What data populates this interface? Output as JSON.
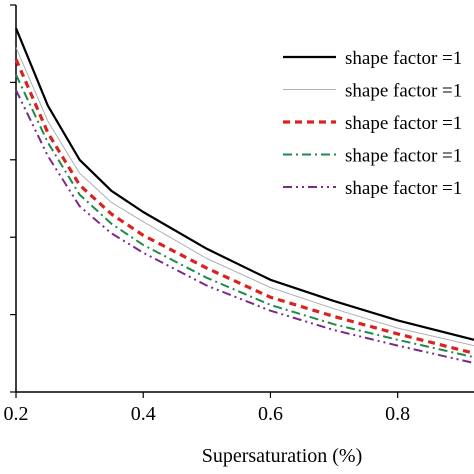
{
  "chart_data": {
    "type": "line",
    "title": "",
    "xlabel": "Supersaturation (%)",
    "ylabel": "",
    "xlim": [
      0.2,
      0.92
    ],
    "ylim": [
      0,
      1
    ],
    "xticks": [
      0.2,
      0.4,
      0.6,
      0.8
    ],
    "xtick_labels": [
      "0.2",
      "0.4",
      "0.6",
      "0.8"
    ],
    "yticks": [
      0,
      0.2,
      0.4,
      0.6,
      0.8,
      1.0
    ],
    "grid": false,
    "legend_position": "top-right",
    "x": [
      0.2,
      0.25,
      0.3,
      0.35,
      0.4,
      0.5,
      0.6,
      0.7,
      0.8,
      0.92
    ],
    "series": [
      {
        "name": "shape factor =1",
        "color": "#000000",
        "dash": "solid",
        "values": [
          0.94,
          0.74,
          0.6,
          0.52,
          0.465,
          0.37,
          0.29,
          0.235,
          0.185,
          0.135
        ]
      },
      {
        "name": "shape factor =1",
        "color": "#b0b0b0",
        "dash": "solid",
        "values": [
          0.89,
          0.7,
          0.565,
          0.49,
          0.44,
          0.345,
          0.27,
          0.215,
          0.165,
          0.12
        ]
      },
      {
        "name": "shape factor =1",
        "color": "#d9231f",
        "dash": "dashed",
        "values": [
          0.86,
          0.67,
          0.535,
          0.46,
          0.405,
          0.32,
          0.245,
          0.195,
          0.15,
          0.1
        ]
      },
      {
        "name": "shape factor =1",
        "color": "#1f8a4c",
        "dash": "dashdot",
        "values": [
          0.82,
          0.645,
          0.51,
          0.435,
          0.38,
          0.295,
          0.225,
          0.175,
          0.135,
          0.09
        ]
      },
      {
        "name": "shape factor =1",
        "color": "#7b2a8a",
        "dash": "dashdotdot",
        "values": [
          0.78,
          0.61,
          0.48,
          0.41,
          0.36,
          0.275,
          0.21,
          0.16,
          0.12,
          0.075
        ]
      }
    ]
  }
}
